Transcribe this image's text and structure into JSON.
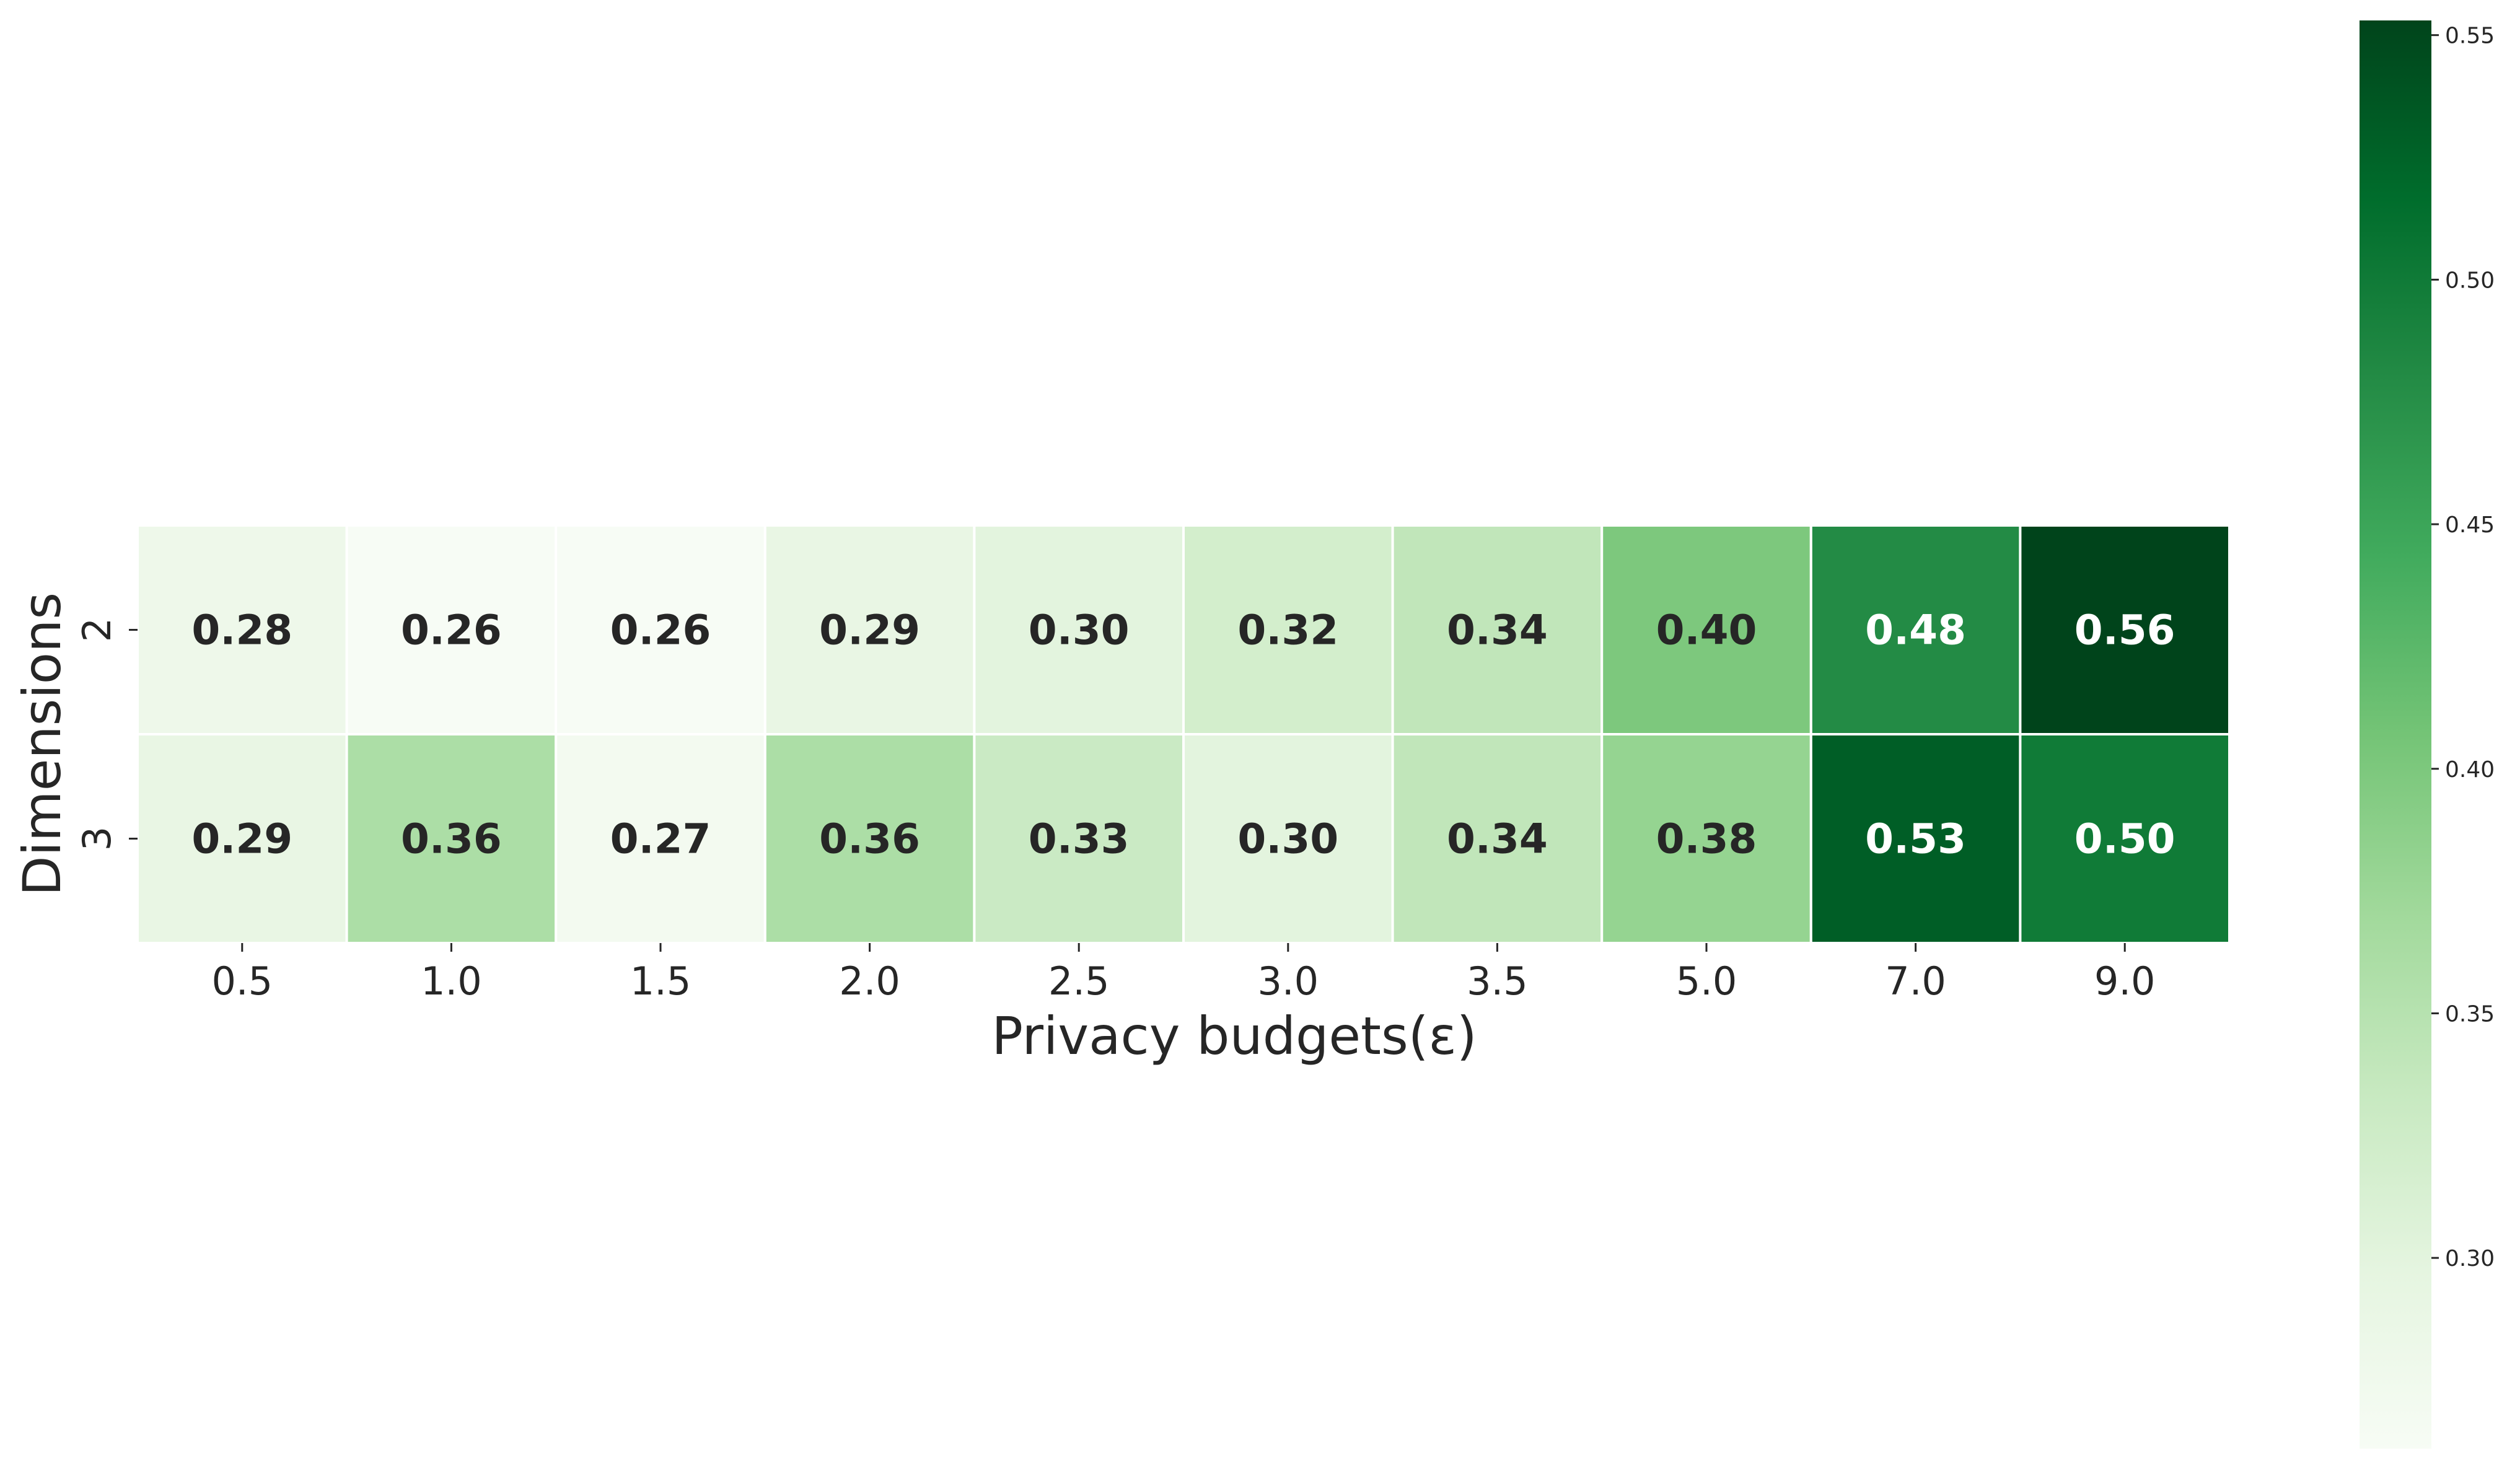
{
  "chart_data": {
    "type": "heatmap",
    "title": "",
    "xlabel": "Privacy budgets(ε)",
    "ylabel": "Dimensions",
    "x_categories": [
      "0.5",
      "1.0",
      "1.5",
      "2.0",
      "2.5",
      "3.0",
      "3.5",
      "5.0",
      "7.0",
      "9.0"
    ],
    "y_categories": [
      "2",
      "3"
    ],
    "values": [
      [
        0.28,
        0.26,
        0.26,
        0.29,
        0.3,
        0.32,
        0.34,
        0.4,
        0.48,
        0.56
      ],
      [
        0.29,
        0.36,
        0.27,
        0.36,
        0.33,
        0.3,
        0.34,
        0.38,
        0.53,
        0.5
      ]
    ],
    "value_format": "0.00",
    "colormap": "Greens",
    "colorbar": {
      "range": [
        0.261,
        0.553
      ],
      "ticks": [
        0.3,
        0.35,
        0.4,
        0.45,
        0.5,
        0.55
      ],
      "tick_labels": [
        "0.30",
        "0.35",
        "0.40",
        "0.45",
        "0.50",
        "0.55"
      ],
      "position": "right"
    },
    "colors": {
      "text_dark": "#262626",
      "text_light": "#ffffff",
      "cell_border": "#ffffff",
      "scale": [
        "#f7fcf5",
        "#e5f5e0",
        "#c7e9c0",
        "#a1d99b",
        "#74c476",
        "#41ab5d",
        "#238b45",
        "#006d2c",
        "#00441b"
      ]
    },
    "grid": false
  }
}
